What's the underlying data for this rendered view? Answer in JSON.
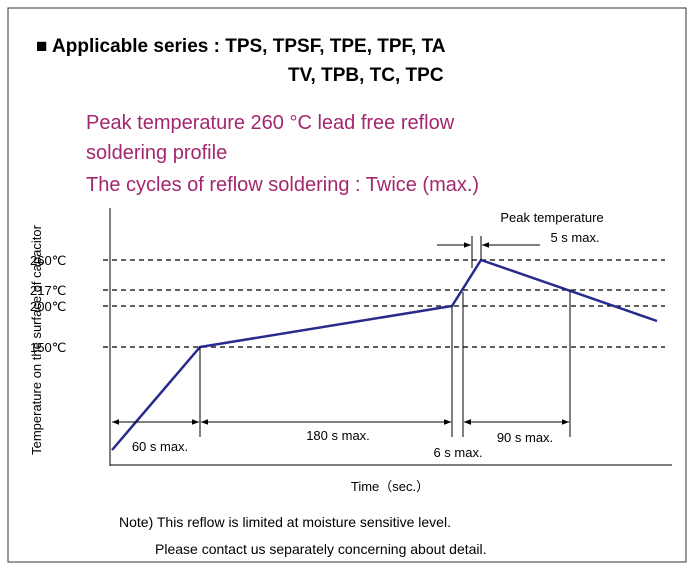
{
  "header": {
    "title_line1": "■ Applicable series : TPS, TPSF, TPE, TPF, TA",
    "title_line2": "TV, TPB, TC, TPC"
  },
  "subtitle": {
    "line1": "Peak temperature 260 °C lead free reflow",
    "line2": "soldering profile",
    "line3": "The cycles of reflow soldering : Twice (max.)"
  },
  "diagram": {
    "y_axis_label": "Temperature on the surface of capacitor",
    "x_axis_label": "Time（sec.）",
    "levels": [
      "260℃",
      "217℃",
      "200℃",
      "150℃"
    ],
    "annotations": {
      "peak_title": "Peak temperature",
      "peak_time": "5 s max.",
      "preheat_ramp": "60 s max.",
      "preheat": "180 s max.",
      "ramp": "6 s max.",
      "above_217": "90 s max."
    }
  },
  "note": {
    "line1": "Note) This reflow is limited at moisture sensitive level.",
    "line2": "Please contact us separately concerning about detail."
  }
}
